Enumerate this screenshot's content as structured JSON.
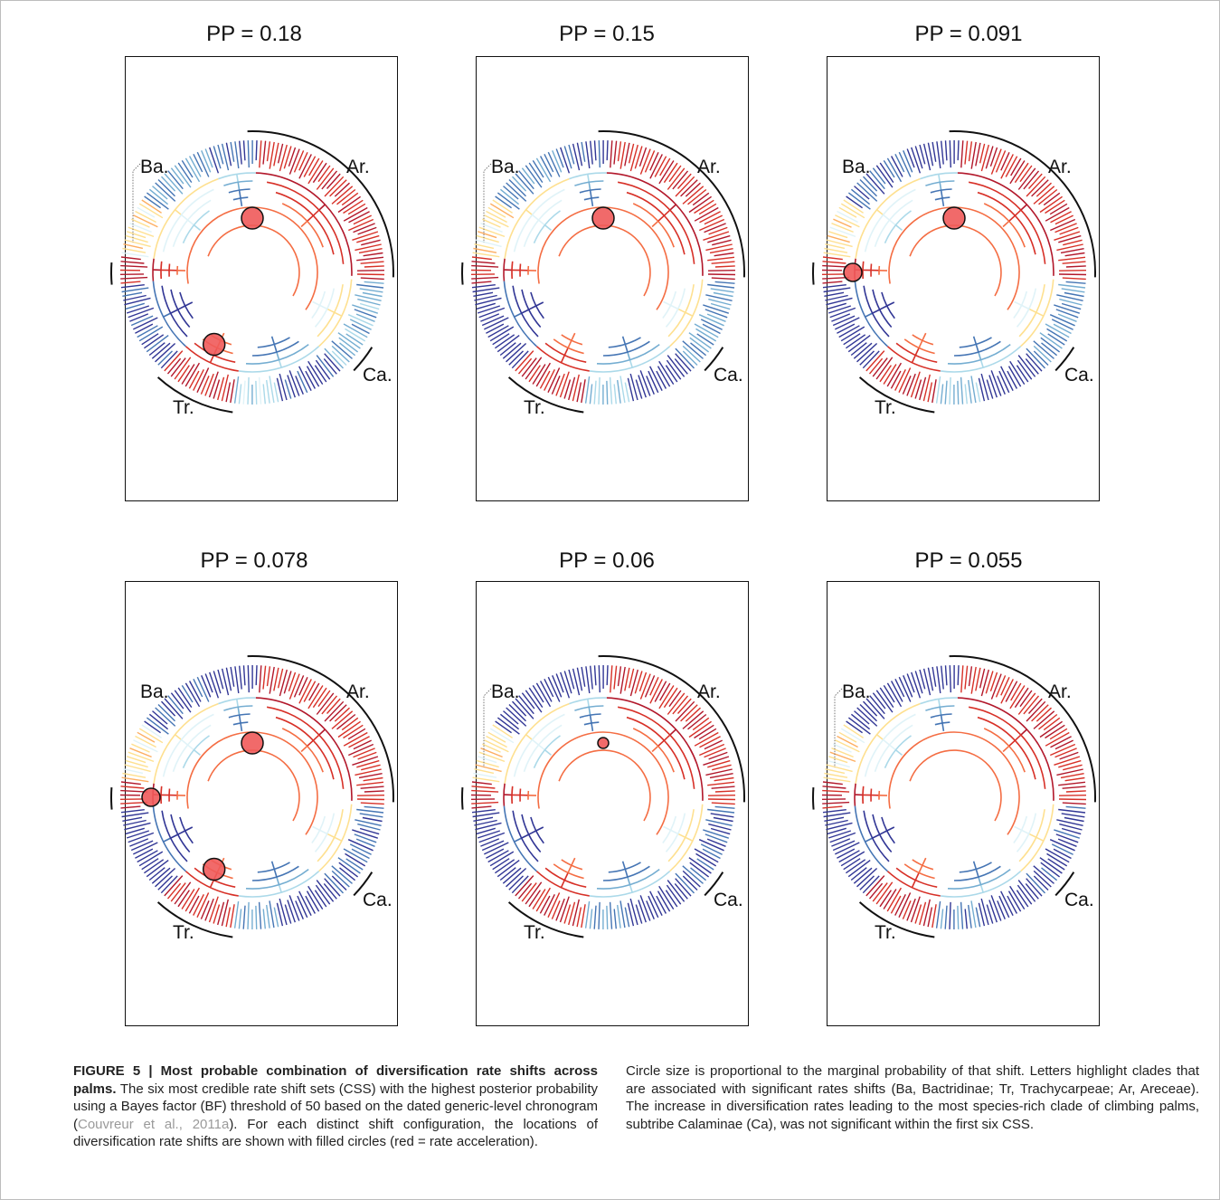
{
  "panels": [
    {
      "title": "PP = 0.18",
      "shifts": [
        {
          "clade": "Ar",
          "size": "large"
        },
        {
          "clade": "Tr",
          "size": "large"
        }
      ],
      "ba_bracket": true
    },
    {
      "title": "PP = 0.15",
      "shifts": [
        {
          "clade": "Ar",
          "size": "large"
        }
      ],
      "ba_bracket": true
    },
    {
      "title": "PP = 0.091",
      "shifts": [
        {
          "clade": "Ar",
          "size": "large"
        },
        {
          "clade": "Ba",
          "size": "medium"
        }
      ],
      "ba_bracket": false
    },
    {
      "title": "PP = 0.078",
      "shifts": [
        {
          "clade": "Ar",
          "size": "large"
        },
        {
          "clade": "Ba",
          "size": "medium"
        },
        {
          "clade": "Tr",
          "size": "large"
        }
      ],
      "ba_bracket": false
    },
    {
      "title": "PP = 0.06",
      "shifts": [
        {
          "clade": "Ar",
          "size": "small"
        }
      ],
      "ba_bracket": true
    },
    {
      "title": "PP = 0.055",
      "shifts": [],
      "ba_bracket": true
    }
  ],
  "clade_labels": {
    "ba": "Ba.",
    "ar": "Ar.",
    "ca": "Ca.",
    "tr": "Tr."
  },
  "colors": {
    "acceleration": "#f05a5a",
    "high_rate": "#b2182b",
    "mid_rate": "#fdae61",
    "low_rate": "#313695"
  },
  "caption": {
    "left_bold": "FIGURE 5 | Most probable combination of diversification rate shifts across palms.",
    "left_text_1": " The six most credible rate shift sets (CSS) with the highest posterior probability using a Bayes factor (BF) threshold of 50 based on the dated generic-level chronogram (",
    "left_citation": "Couvreur et al., 2011a",
    "left_text_2": "). For each distinct shift configuration, the locations of diversification rate shifts are shown with filled circles (red = rate acceleration).",
    "right_text": "Circle size is proportional to the marginal probability of that shift. Letters highlight clades that are associated with significant rates shifts (Ba, Bactridinae; Tr, Trachycarpeae; Ar, Areceae). The increase in diversification rates leading to the most species-rich clade of climbing palms, subtribe Calaminae (Ca), was not significant within the first six CSS."
  }
}
